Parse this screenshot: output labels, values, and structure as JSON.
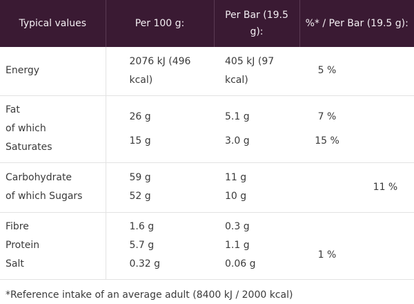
{
  "header": {
    "col0": "Typical values",
    "col1": "Per 100 g:",
    "col2": "Per Bar (19.5 g):",
    "col3": "%* / Per Bar (19.5 g):"
  },
  "rows": {
    "energy": {
      "label": "Energy",
      "per100": "2076 kJ (496 kcal)",
      "perBar": "405 kJ (97 kcal)",
      "percent": "5 %"
    },
    "fat": {
      "label1": "Fat",
      "label2": "of which",
      "label3": "Saturates",
      "per100_fat": "26 g",
      "per100_sat": "15 g",
      "perBar_fat": "5.1 g",
      "perBar_sat": "3.0 g",
      "percent_fat": "7 %",
      "percent_sat": "15 %"
    },
    "carb": {
      "label1": "Carbohydrate",
      "label2": "of which Sugars",
      "per100_carb": "59 g",
      "per100_sugar": "52 g",
      "perBar_carb": "11 g",
      "perBar_sugar": "10 g",
      "percent_sugar": "11 %"
    },
    "misc": {
      "label_fibre": "Fibre",
      "label_protein": "Protein",
      "label_salt": "Salt",
      "per100_fibre": "1.6 g",
      "per100_protein": "5.7 g",
      "per100_salt": "0.32 g",
      "perBar_fibre": "0.3 g",
      "perBar_protein": "1.1 g",
      "perBar_salt": "0.06 g",
      "percent_salt": "1 %"
    }
  },
  "footnote": "*Reference intake of an average adult (8400 kJ / 2000 kcal)",
  "colors": {
    "header_bg": "#3a1a33",
    "header_text": "#f3eef2",
    "body_text": "#3a3a3a",
    "divider": "#e2e2e2"
  }
}
